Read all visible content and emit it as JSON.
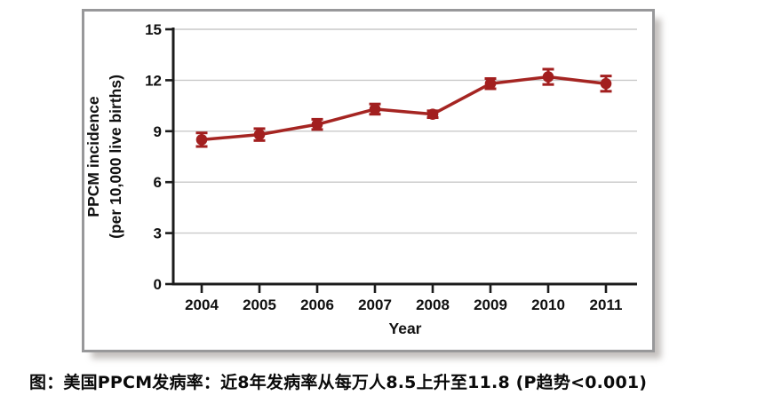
{
  "figure": {
    "caption": "图：美国PPCM发病率：近8年发病率从每万人8.5上升至11.8 (P趋势<0.001)"
  },
  "chart_data": {
    "type": "line",
    "title": "",
    "xlabel": "Year",
    "ylabel": "PPCM incidence (per 10,000 live births)",
    "ylabel_lines": [
      "PPCM incidence",
      "(per 10,000 live births)"
    ],
    "x": [
      2004,
      2005,
      2006,
      2007,
      2008,
      2009,
      2010,
      2011
    ],
    "series": [
      {
        "name": "PPCM incidence",
        "values": [
          8.5,
          8.8,
          9.4,
          10.3,
          10.0,
          11.8,
          12.2,
          11.8
        ],
        "errors": [
          0.4,
          0.35,
          0.3,
          0.3,
          0.2,
          0.3,
          0.45,
          0.45
        ]
      }
    ],
    "ylim": [
      0,
      15
    ],
    "yticks": [
      0,
      3,
      6,
      9,
      12,
      15
    ],
    "grid": true,
    "legend": "none",
    "colors": {
      "series": "#A52522",
      "marker": "#A21F1F",
      "axis": "#1c1c1c",
      "gridline": "#c9c9c9",
      "frame_border": "#98989a",
      "text": "#111111"
    }
  }
}
